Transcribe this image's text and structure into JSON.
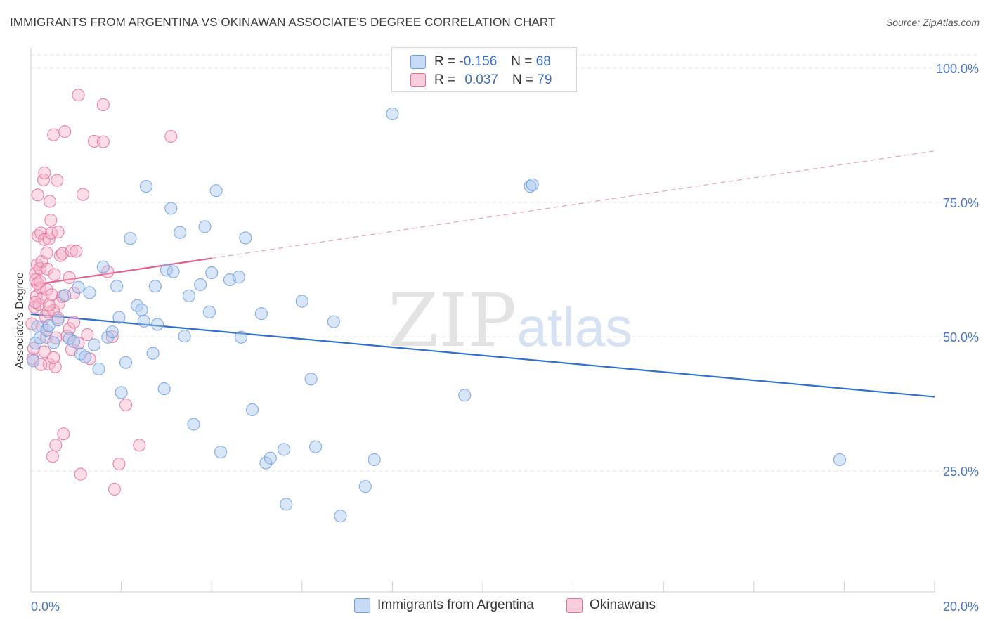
{
  "header": {
    "title": "IMMIGRANTS FROM ARGENTINA VS OKINAWAN ASSOCIATE'S DEGREE CORRELATION CHART",
    "source": "Source: ZipAtlas.com"
  },
  "watermark": {
    "zip": "ZIP",
    "atlas": "atlas"
  },
  "legend": {
    "rows": [
      {
        "r_label": "R = ",
        "r_value": "-0.156",
        "n_label": "N = ",
        "n_value": "68",
        "color": "#aac7f0"
      },
      {
        "r_label": "R = ",
        "r_value": "0.037",
        "n_label": "N = ",
        "n_value": "79",
        "color": "#f4b4c9"
      }
    ]
  },
  "bottom_legend": [
    {
      "label": "Immigrants from Argentina",
      "color": "#aac7f0"
    },
    {
      "label": "Okinawans",
      "color": "#f4b4c9"
    }
  ],
  "chart_data": {
    "type": "scatter",
    "title": "IMMIGRANTS FROM ARGENTINA VS OKINAWAN ASSOCIATE'S DEGREE CORRELATION CHART",
    "xlabel": "",
    "ylabel": "Associate's Degree",
    "xlim": [
      0,
      20
    ],
    "ylim": [
      0,
      102
    ],
    "x_ticks": [
      "0.0%",
      "20.0%"
    ],
    "y_ticks": [
      {
        "value": 25,
        "label": "25.0%"
      },
      {
        "value": 50,
        "label": "50.0%"
      },
      {
        "value": 75,
        "label": "75.0%"
      },
      {
        "value": 100,
        "label": "100.0%"
      }
    ],
    "grid": true,
    "legend_position": "top-center",
    "series": [
      {
        "name": "Immigrants from Argentina",
        "color": "#6f9fe0",
        "fill": "#aac7f0",
        "trend": {
          "x0": 0,
          "y0": 54.2,
          "x1": 20,
          "y1": 38.8
        },
        "points": [
          [
            0.05,
            45.5
          ],
          [
            0.1,
            48.8
          ],
          [
            0.15,
            51.9
          ],
          [
            0.2,
            49.8
          ],
          [
            0.35,
            51.2
          ],
          [
            0.4,
            52.1
          ],
          [
            0.5,
            48.9
          ],
          [
            0.6,
            53.1
          ],
          [
            0.75,
            57.7
          ],
          [
            0.85,
            49.7
          ],
          [
            0.95,
            49.1
          ],
          [
            1.05,
            59.2
          ],
          [
            1.1,
            46.8
          ],
          [
            1.2,
            46.2
          ],
          [
            1.3,
            58.2
          ],
          [
            1.4,
            48.5
          ],
          [
            1.5,
            44.0
          ],
          [
            1.6,
            63.0
          ],
          [
            1.7,
            49.9
          ],
          [
            1.8,
            50.9
          ],
          [
            1.9,
            59.4
          ],
          [
            1.95,
            53.6
          ],
          [
            2.0,
            39.6
          ],
          [
            2.1,
            45.2
          ],
          [
            2.2,
            68.3
          ],
          [
            2.35,
            55.8
          ],
          [
            2.45,
            55.0
          ],
          [
            2.5,
            52.9
          ],
          [
            2.55,
            78.0
          ],
          [
            2.7,
            46.9
          ],
          [
            2.75,
            59.4
          ],
          [
            2.8,
            52.3
          ],
          [
            2.95,
            40.3
          ],
          [
            3.0,
            62.4
          ],
          [
            3.1,
            73.9
          ],
          [
            3.15,
            62.1
          ],
          [
            3.3,
            69.4
          ],
          [
            3.4,
            50.1
          ],
          [
            3.5,
            57.6
          ],
          [
            3.6,
            33.7
          ],
          [
            3.75,
            59.7
          ],
          [
            3.85,
            70.5
          ],
          [
            3.95,
            54.6
          ],
          [
            4.0,
            61.9
          ],
          [
            4.1,
            77.2
          ],
          [
            4.2,
            28.5
          ],
          [
            4.4,
            60.6
          ],
          [
            4.6,
            61.1
          ],
          [
            4.65,
            49.9
          ],
          [
            4.75,
            68.4
          ],
          [
            4.9,
            36.4
          ],
          [
            5.1,
            54.3
          ],
          [
            5.2,
            26.5
          ],
          [
            5.3,
            27.4
          ],
          [
            5.6,
            29.0
          ],
          [
            5.65,
            18.8
          ],
          [
            6.0,
            56.6
          ],
          [
            6.2,
            42.1
          ],
          [
            6.3,
            29.5
          ],
          [
            6.7,
            52.8
          ],
          [
            6.85,
            16.6
          ],
          [
            7.4,
            22.1
          ],
          [
            7.6,
            27.1
          ],
          [
            8.0,
            91.5
          ],
          [
            9.6,
            39.1
          ],
          [
            11.05,
            78.0
          ],
          [
            11.1,
            78.3
          ],
          [
            17.9,
            27.1
          ]
        ]
      },
      {
        "name": "Okinawans",
        "color": "#e66f97",
        "fill": "#f4b4c9",
        "trend": {
          "x0": 0,
          "y0": 59.6,
          "x1": 20,
          "y1": 84.6
        },
        "trend_solid_end_x": 4.0,
        "points": [
          [
            0.02,
            52.4
          ],
          [
            0.04,
            45.9
          ],
          [
            0.06,
            47.8
          ],
          [
            0.08,
            55.5
          ],
          [
            0.1,
            61.8
          ],
          [
            0.1,
            60.6
          ],
          [
            0.12,
            57.5
          ],
          [
            0.14,
            63.4
          ],
          [
            0.15,
            76.4
          ],
          [
            0.16,
            68.8
          ],
          [
            0.18,
            56.0
          ],
          [
            0.2,
            59.1
          ],
          [
            0.2,
            62.7
          ],
          [
            0.22,
            69.3
          ],
          [
            0.24,
            64.0
          ],
          [
            0.25,
            51.9
          ],
          [
            0.26,
            57.2
          ],
          [
            0.28,
            79.2
          ],
          [
            0.3,
            80.5
          ],
          [
            0.3,
            68.1
          ],
          [
            0.32,
            53.8
          ],
          [
            0.34,
            49.9
          ],
          [
            0.35,
            58.8
          ],
          [
            0.36,
            62.6
          ],
          [
            0.38,
            54.6
          ],
          [
            0.4,
            44.9
          ],
          [
            0.4,
            68.2
          ],
          [
            0.42,
            75.2
          ],
          [
            0.44,
            71.7
          ],
          [
            0.45,
            69.3
          ],
          [
            0.46,
            57.8
          ],
          [
            0.48,
            27.7
          ],
          [
            0.5,
            54.9
          ],
          [
            0.5,
            87.6
          ],
          [
            0.52,
            61.6
          ],
          [
            0.54,
            44.4
          ],
          [
            0.55,
            29.8
          ],
          [
            0.58,
            79.1
          ],
          [
            0.6,
            53.5
          ],
          [
            0.62,
            56.2
          ],
          [
            0.65,
            65.1
          ],
          [
            0.7,
            65.5
          ],
          [
            0.72,
            31.9
          ],
          [
            0.75,
            88.2
          ],
          [
            0.8,
            50.1
          ],
          [
            0.85,
            51.5
          ],
          [
            0.9,
            47.6
          ],
          [
            0.9,
            66.0
          ],
          [
            0.95,
            58.1
          ],
          [
            1.0,
            65.9
          ],
          [
            1.05,
            95.0
          ],
          [
            1.1,
            24.4
          ],
          [
            1.15,
            76.5
          ],
          [
            1.4,
            86.4
          ],
          [
            1.6,
            93.2
          ],
          [
            1.6,
            86.3
          ],
          [
            1.7,
            62.1
          ],
          [
            1.8,
            50.0
          ],
          [
            1.85,
            21.6
          ],
          [
            1.95,
            26.3
          ],
          [
            2.1,
            37.3
          ],
          [
            2.4,
            29.8
          ],
          [
            3.1,
            87.3
          ],
          [
            0.22,
            44.8
          ],
          [
            0.3,
            47.2
          ],
          [
            0.4,
            55.9
          ],
          [
            0.55,
            49.8
          ],
          [
            0.7,
            57.5
          ],
          [
            0.85,
            61.0
          ],
          [
            1.05,
            48.8
          ],
          [
            1.25,
            50.4
          ],
          [
            0.15,
            59.9
          ],
          [
            0.35,
            65.6
          ],
          [
            0.6,
            69.5
          ],
          [
            0.2,
            60.3
          ],
          [
            0.5,
            46.1
          ],
          [
            0.95,
            52.7
          ],
          [
            1.3,
            45.9
          ],
          [
            0.1,
            56.4
          ]
        ]
      }
    ]
  }
}
